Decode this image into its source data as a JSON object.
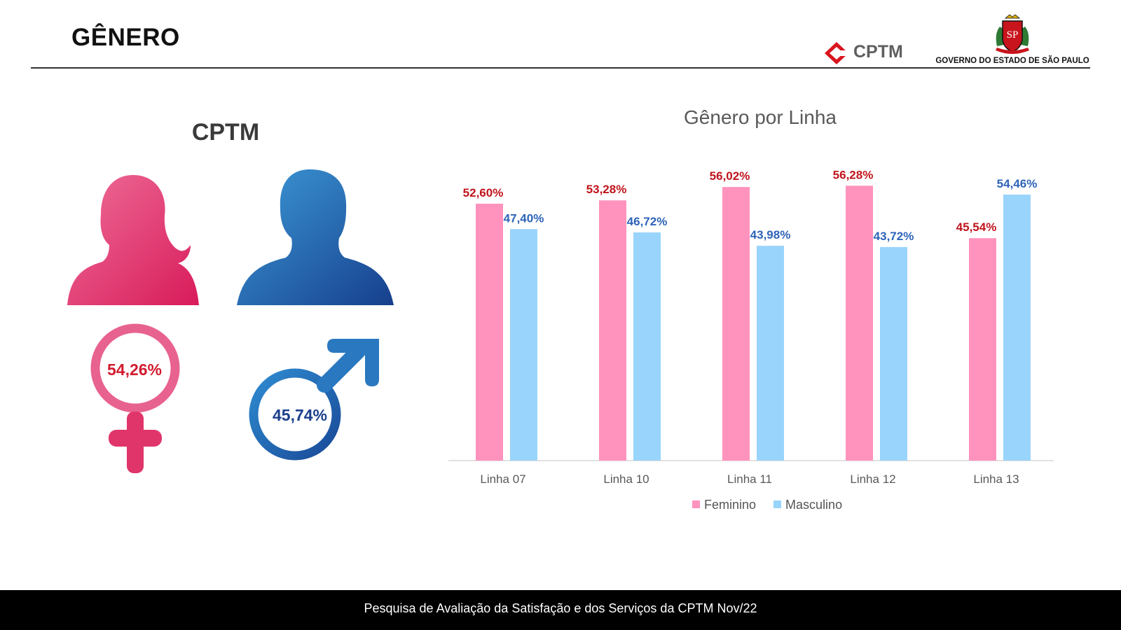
{
  "page": {
    "title": "GÊNERO"
  },
  "logos": {
    "cptm_text": "CPTM",
    "sp_caption": "GOVERNO DO ESTADO DE SÃO PAULO",
    "sp_emblem_letters": "SP"
  },
  "summary": {
    "title": "CPTM",
    "female_pct": "54,26%",
    "male_pct": "45,74%",
    "female_color": "#e5386c",
    "male_color": "#2878c0",
    "icons": [
      "female-silhouette-icon",
      "male-silhouette-icon",
      "female-symbol-icon",
      "male-symbol-icon"
    ]
  },
  "chart_data": {
    "type": "bar",
    "title": "Gênero por Linha",
    "categories": [
      "Linha 07",
      "Linha 10",
      "Linha 11",
      "Linha 12",
      "Linha 13"
    ],
    "series": [
      {
        "name": "Feminino",
        "color": "#ff93bd",
        "label_color": "#c0141c",
        "values": [
          52.6,
          53.28,
          56.02,
          56.28,
          45.54
        ],
        "labels": [
          "52,60%",
          "53,28%",
          "56,02%",
          "56,28%",
          "45,54%"
        ]
      },
      {
        "name": "Masculino",
        "color": "#99d4fc",
        "label_color": "#2e64b8",
        "values": [
          47.4,
          46.72,
          43.98,
          43.72,
          54.46
        ],
        "labels": [
          "47,40%",
          "46,72%",
          "43,98%",
          "43,72%",
          "54,46%"
        ]
      }
    ],
    "ylim": [
      0,
      60
    ],
    "grid": false,
    "legend_position": "bottom"
  },
  "footer": {
    "text": "Pesquisa de Avaliação da Satisfação e dos Serviços da CPTM Nov/22"
  }
}
